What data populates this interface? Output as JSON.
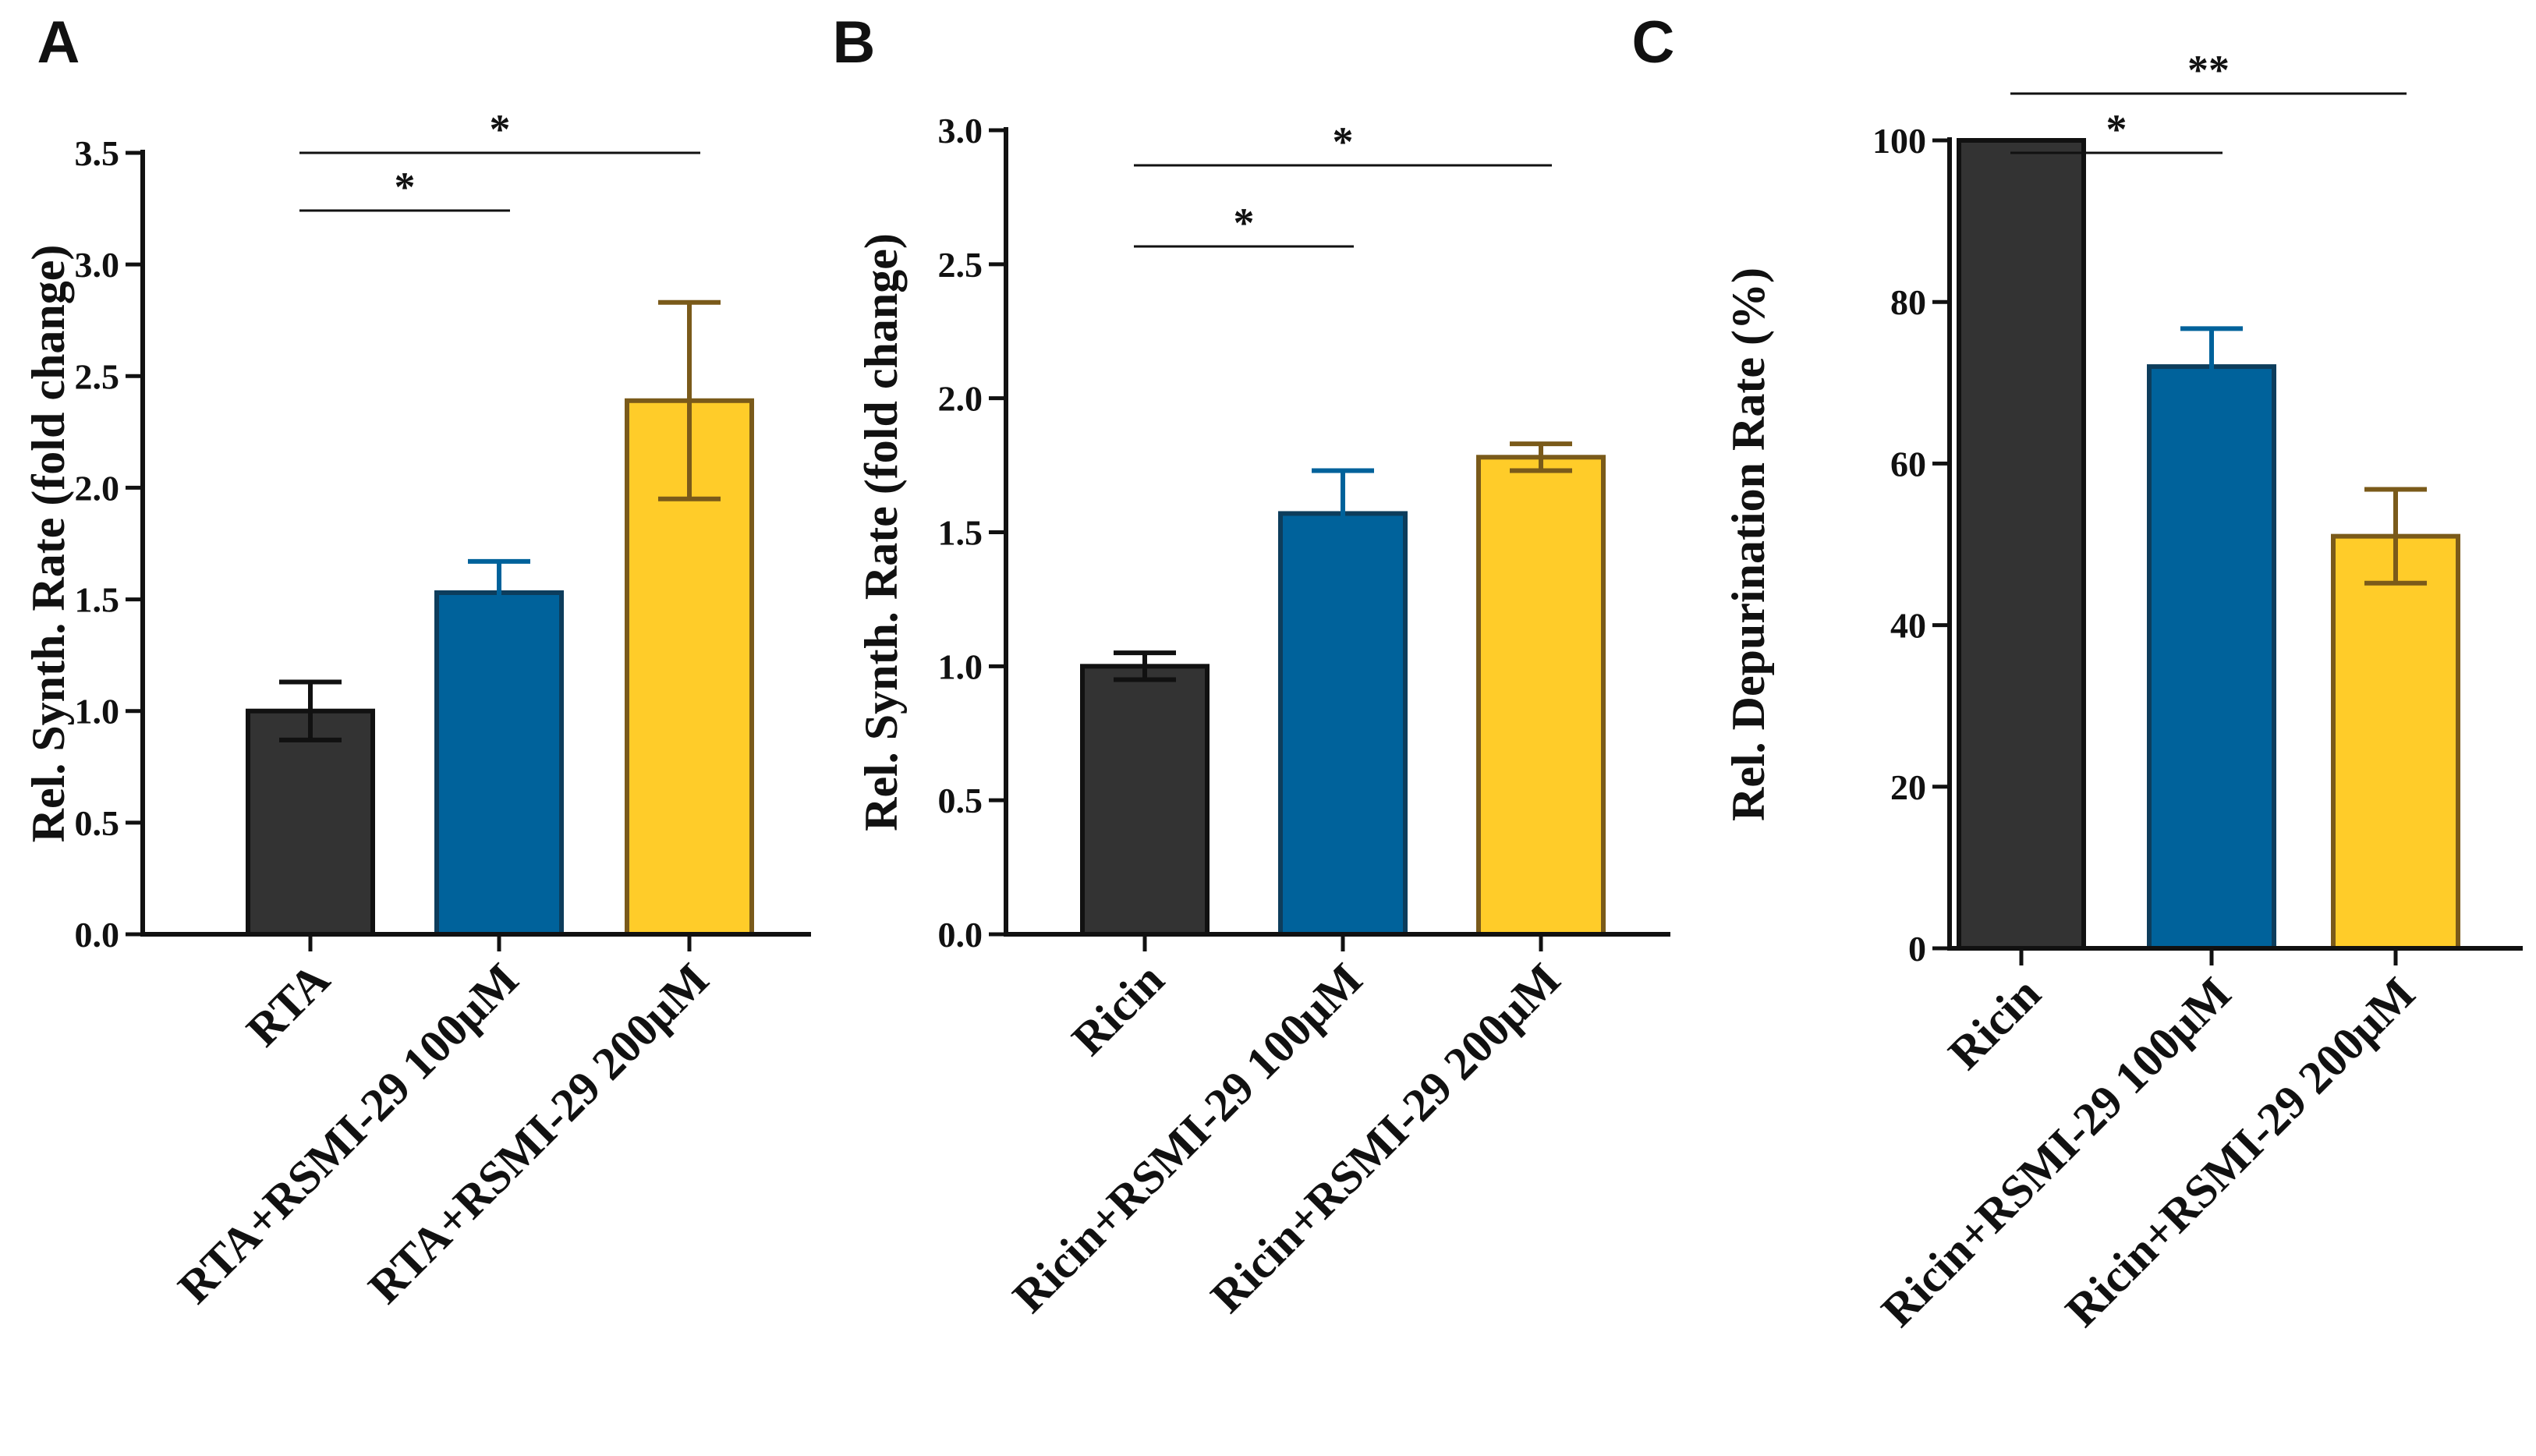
{
  "colors": {
    "control": "#333333",
    "low_dose": "#00629b",
    "high_dose": "#ffcc29",
    "control_edge": "#111111",
    "low_dose_edge": "#0d3d5c",
    "high_dose_edge": "#7a5a1a",
    "axis": "#111111"
  },
  "chart_data": [
    {
      "panel": "A",
      "type": "bar",
      "title": "",
      "xlabel": "",
      "ylabel": "Rel. Synth. Rate (fold change)",
      "ylim": [
        0,
        3.5
      ],
      "yticks": [
        "0.0",
        "0.5",
        "1.0",
        "1.5",
        "2.0",
        "2.5",
        "3.0",
        "3.5"
      ],
      "categories": [
        "RTA",
        "RTA+RSMI-29 100μM",
        "RTA+RSMI-29 200μM"
      ],
      "values": [
        1.0,
        1.53,
        2.39
      ],
      "errors": [
        0.13,
        0.14,
        0.44
      ],
      "significance": [
        {
          "from": 0,
          "to": 1,
          "label": "*"
        },
        {
          "from": 0,
          "to": 2,
          "label": "*"
        }
      ]
    },
    {
      "panel": "B",
      "type": "bar",
      "title": "",
      "xlabel": "",
      "ylabel": "Rel. Synth. Rate (fold change)",
      "ylim": [
        0,
        3.0
      ],
      "yticks": [
        "0.0",
        "0.5",
        "1.0",
        "1.5",
        "2.0",
        "2.5",
        "3.0"
      ],
      "categories": [
        "Ricin",
        "Ricin+RSMI-29 100μM",
        "Ricin+RSMI-29 200μM"
      ],
      "values": [
        1.0,
        1.57,
        1.78
      ],
      "errors": [
        0.05,
        0.16,
        0.05
      ],
      "significance": [
        {
          "from": 0,
          "to": 1,
          "label": "*"
        },
        {
          "from": 0,
          "to": 2,
          "label": "*"
        }
      ]
    },
    {
      "panel": "C",
      "type": "bar",
      "title": "",
      "xlabel": "",
      "ylabel": "Rel. Depurination Rate (%)",
      "ylim": [
        0,
        100
      ],
      "yticks": [
        "0",
        "20",
        "40",
        "60",
        "80",
        "100"
      ],
      "categories": [
        "Ricin",
        "Ricin+RSMI-29 100μM",
        "Ricin+RSMI-29 200μM"
      ],
      "values": [
        100,
        72,
        51
      ],
      "errors": [
        0,
        4.7,
        5.8
      ],
      "significance": [
        {
          "from": 0,
          "to": 1,
          "label": "*"
        },
        {
          "from": 0,
          "to": 2,
          "label": "**"
        }
      ]
    }
  ]
}
